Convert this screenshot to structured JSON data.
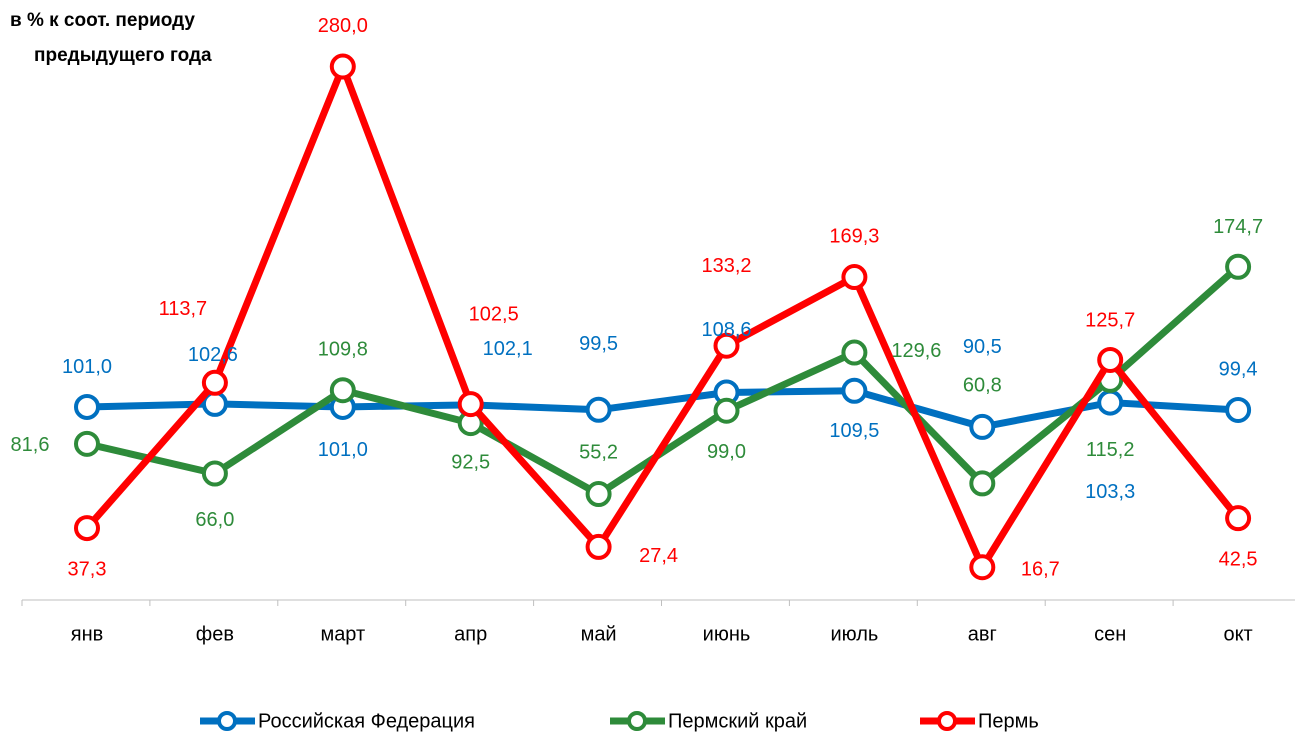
{
  "chart_data": {
    "type": "line",
    "title": [
      "в % к соот. периоду",
      "предыдущего года"
    ],
    "categories": [
      "янв",
      "фев",
      "март",
      "апр",
      "май",
      "июнь",
      "июль",
      "авг",
      "сен",
      "окт"
    ],
    "ylim": [
      0,
      315
    ],
    "series": [
      {
        "name": "Российская Федерация",
        "color": "#0070c0",
        "values": [
          101.0,
          102.6,
          101.0,
          102.1,
          99.5,
          108.6,
          109.5,
          90.5,
          103.3,
          99.4
        ],
        "value_labels": [
          "101,0",
          "102,6",
          "101,0",
          "102,1",
          "99,5",
          "108,6",
          "109,5",
          "90,5",
          "103,3",
          "99,4"
        ]
      },
      {
        "name": "Пермский край",
        "color": "#2e8b3a",
        "values": [
          81.6,
          66.0,
          109.8,
          92.5,
          55.2,
          99.0,
          129.6,
          60.8,
          115.2,
          174.7
        ],
        "value_labels": [
          "81,6",
          "66,0",
          "109,8",
          "92,5",
          "55,2",
          "99,0",
          "129,6",
          "60,8",
          "115,2",
          "174,7"
        ]
      },
      {
        "name": "Пермь",
        "color": "#ff0000",
        "values": [
          37.3,
          113.7,
          280.0,
          102.5,
          27.4,
          133.2,
          169.3,
          16.7,
          125.7,
          42.5
        ],
        "value_labels": [
          "37,3",
          "113,7",
          "280,0",
          "102,5",
          "27,4",
          "133,2",
          "169,3",
          "16,7",
          "125,7",
          "42,5"
        ]
      }
    ]
  }
}
